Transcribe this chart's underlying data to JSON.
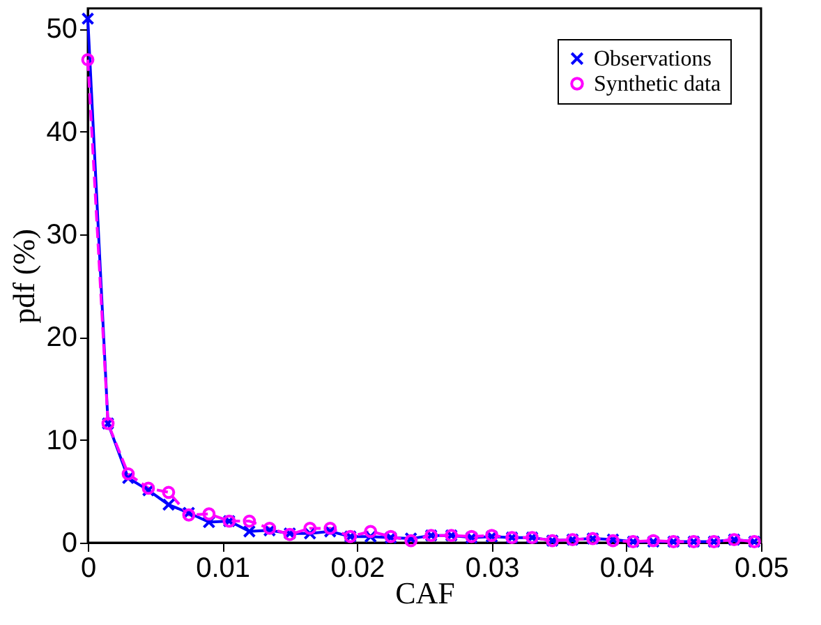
{
  "chart_data": {
    "type": "line",
    "xlabel": "CAF",
    "ylabel": "pdf (%)",
    "x": [
      0,
      0.0015,
      0.003,
      0.0045,
      0.006,
      0.0075,
      0.009,
      0.0105,
      0.012,
      0.0135,
      0.015,
      0.0165,
      0.018,
      0.0195,
      0.021,
      0.0225,
      0.024,
      0.0255,
      0.027,
      0.0285,
      0.03,
      0.0315,
      0.033,
      0.0345,
      0.036,
      0.0375,
      0.039,
      0.0405,
      0.042,
      0.0435,
      0.045,
      0.0465,
      0.048,
      0.0495
    ],
    "series": [
      {
        "name": "Observations",
        "color": "#0000ff",
        "marker": "cross",
        "line_style": "solid",
        "values": [
          51.0,
          11.6,
          6.3,
          5.1,
          3.7,
          2.9,
          2.0,
          2.1,
          1.1,
          1.2,
          0.9,
          0.9,
          1.1,
          0.6,
          0.6,
          0.5,
          0.4,
          0.7,
          0.7,
          0.5,
          0.6,
          0.5,
          0.5,
          0.2,
          0.3,
          0.4,
          0.3,
          0.1,
          0.1,
          0.1,
          0.1,
          0.1,
          0.3,
          0.1
        ]
      },
      {
        "name": "Synthetic data",
        "color": "#ff00ff",
        "marker": "circle",
        "line_style": "dashed",
        "values": [
          47.0,
          11.6,
          6.7,
          5.3,
          4.9,
          2.7,
          2.8,
          2.1,
          2.1,
          1.4,
          0.8,
          1.4,
          1.4,
          0.6,
          1.1,
          0.6,
          0.2,
          0.7,
          0.7,
          0.6,
          0.7,
          0.5,
          0.5,
          0.2,
          0.3,
          0.4,
          0.2,
          0.1,
          0.2,
          0.1,
          0.1,
          0.1,
          0.3,
          0.1
        ]
      }
    ],
    "xlim": [
      0,
      0.05
    ],
    "xticks": [
      0,
      0.01,
      0.02,
      0.03,
      0.04,
      0.05
    ],
    "ylim": [
      0,
      52
    ],
    "yticks": [
      0,
      10,
      20,
      30,
      40,
      50
    ],
    "grid": false,
    "legend": "top right"
  }
}
